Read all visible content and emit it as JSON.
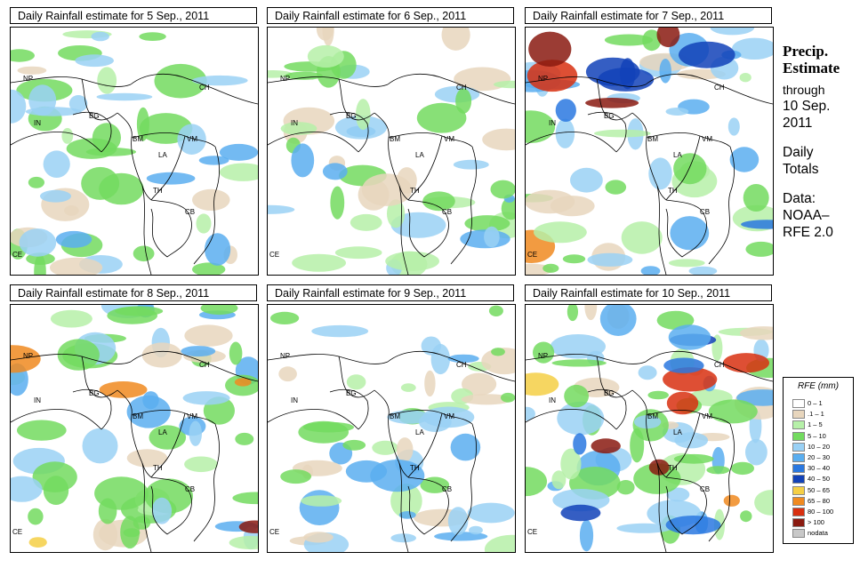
{
  "panels": [
    {
      "title": "Daily Rainfall estimate for  5 Sep., 2011",
      "intensity": "low"
    },
    {
      "title": "Daily Rainfall estimate for  6 Sep., 2011",
      "intensity": "low"
    },
    {
      "title": "Daily Rainfall estimate for  7 Sep., 2011",
      "intensity": "medium"
    },
    {
      "title": "Daily Rainfall estimate for  8 Sep., 2011",
      "intensity": "medium"
    },
    {
      "title": "Daily Rainfall estimate for  9 Sep., 2011",
      "intensity": "low"
    },
    {
      "title": "Daily Rainfall estimate for  10 Sep., 2011",
      "intensity": "high"
    }
  ],
  "map_labels": {
    "np": "NP",
    "ch": "CH",
    "in": "IN",
    "bg": "BG",
    "bm": "BM",
    "vm": "VM",
    "la": "LA",
    "th": "TH",
    "cb": "CB",
    "ce": "CE"
  },
  "side": {
    "title_line1": "Precip.",
    "title_line2": "Estimate",
    "through": "through",
    "date_line1": "10 Sep.",
    "date_line2": "2011",
    "totals_line1": "Daily",
    "totals_line2": "Totals",
    "data_line1": "Data:",
    "data_line2": "NOAA–",
    "data_line3": "RFE 2.0"
  },
  "legend": {
    "title": "RFE (mm)",
    "items": [
      {
        "label": "0 – 1",
        "color": "#ffffff"
      },
      {
        "label": ".1 – 1",
        "color": "#e8d6bd"
      },
      {
        "label": "1 – 5",
        "color": "#b6f0a8"
      },
      {
        "label": "5 – 10",
        "color": "#73db5f"
      },
      {
        "label": "10 – 20",
        "color": "#9ad1f5"
      },
      {
        "label": "20 – 30",
        "color": "#5aaef0"
      },
      {
        "label": "30 – 40",
        "color": "#2a78e0"
      },
      {
        "label": "40 – 50",
        "color": "#1242b8"
      },
      {
        "label": "50 – 65",
        "color": "#f5cf45"
      },
      {
        "label": "65 – 80",
        "color": "#f08a20"
      },
      {
        "label": "80 – 100",
        "color": "#d83010"
      },
      {
        "label": "> 100",
        "color": "#8a1a10"
      },
      {
        "label": "nodata",
        "color": "#c8c8c8"
      }
    ]
  }
}
